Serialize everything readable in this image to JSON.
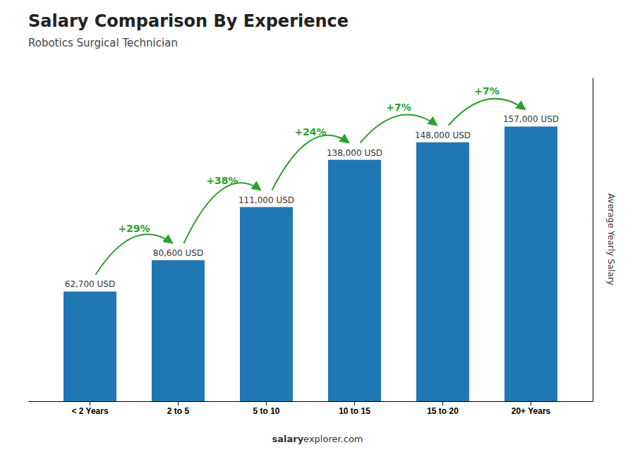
{
  "chart_data": {
    "type": "bar",
    "title": "Salary Comparison By Experience",
    "subtitle": "Robotics Surgical Technician",
    "ylabel": "Average Yearly Salary",
    "categories": [
      "< 2 Years",
      "2 to 5",
      "5 to 10",
      "10 to 15",
      "15 to 20",
      "20+ Years"
    ],
    "values": [
      62700,
      80600,
      111000,
      138000,
      148000,
      157000
    ],
    "value_labels": [
      "62,700 USD",
      "80,600 USD",
      "111,000 USD",
      "138,000 USD",
      "148,000 USD",
      "157,000 USD"
    ],
    "data_labels": true,
    "annotations": [
      "+29%",
      "+38%",
      "+24%",
      "+7%",
      "+7%"
    ],
    "footer": [
      "salary",
      "explorer.com"
    ],
    "ylim": [
      0,
      185000
    ],
    "yticks": [],
    "tick_labels": "x",
    "grid": false
  }
}
